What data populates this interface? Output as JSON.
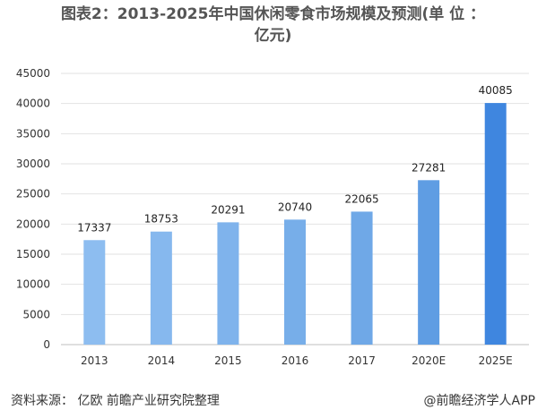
{
  "title_line1": "图表2：2013-2025年中国休闲零食市场规模及预测(单 位 ：",
  "title_line2": "亿元)",
  "footer": {
    "source": "资料来源： 亿欧 前瞻产业研究院整理",
    "brand": "@前瞻经济学人APP"
  },
  "chart_data": {
    "type": "bar",
    "categories": [
      "2013",
      "2014",
      "2015",
      "2016",
      "2017",
      "2020E",
      "2025E"
    ],
    "values": [
      17337,
      18753,
      20291,
      20740,
      22065,
      27281,
      40085
    ],
    "colors": [
      "#8dbdf0",
      "#86b8ee",
      "#7fb3ec",
      "#77aee9",
      "#6fa8e7",
      "#5f9de3",
      "#3f86df"
    ],
    "yticks": [
      0,
      5000,
      10000,
      15000,
      20000,
      25000,
      30000,
      35000,
      40000,
      45000
    ],
    "ylim": [
      0,
      45000
    ],
    "grid": true,
    "data_labels": true
  }
}
